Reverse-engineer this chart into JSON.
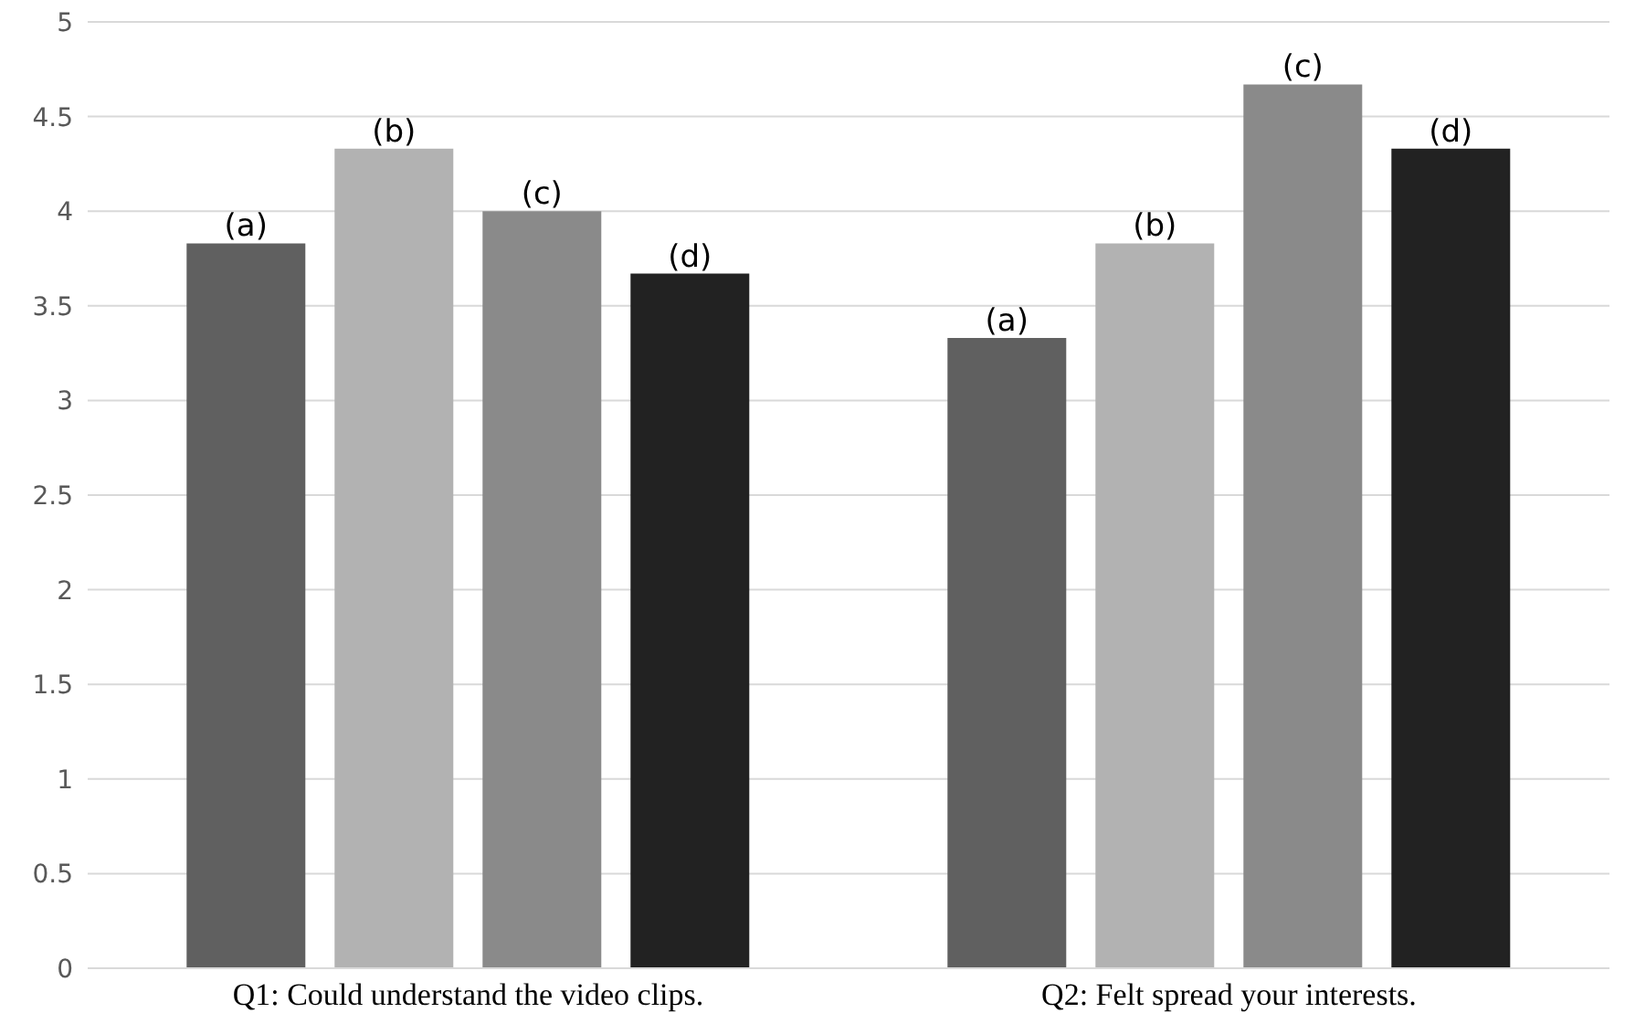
{
  "chart_data": {
    "type": "bar",
    "categories": [
      "Q1: Could understand the video clips.",
      "Q2: Felt spread your interests."
    ],
    "series": [
      {
        "name": "(a)",
        "color": "#606060",
        "values": [
          3.83,
          3.33
        ]
      },
      {
        "name": "(b)",
        "color": "#b2b2b2",
        "values": [
          4.33,
          3.83
        ]
      },
      {
        "name": "(c)",
        "color": "#8a8a8a",
        "values": [
          4.0,
          4.67
        ]
      },
      {
        "name": "(d)",
        "color": "#222222",
        "values": [
          3.67,
          4.33
        ]
      }
    ],
    "ylim": [
      0,
      5
    ],
    "yticks": [
      0,
      0.5,
      1,
      1.5,
      2,
      2.5,
      3,
      3.5,
      4,
      4.5,
      5
    ],
    "grid": "y",
    "legend": false
  }
}
